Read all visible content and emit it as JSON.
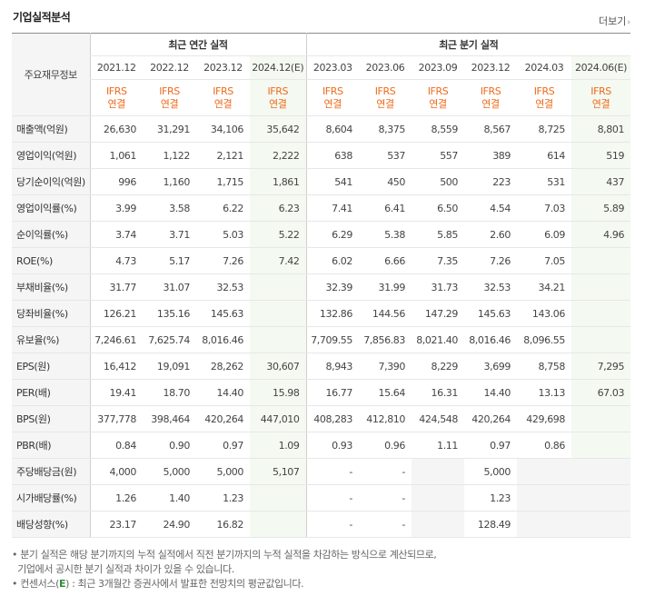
{
  "title": "기업실적분석",
  "more_label": "더보기",
  "header": {
    "corner": "주요재무정보",
    "annual_group": "최근 연간 실적",
    "quarter_group": "최근 분기 실적",
    "annual_periods": [
      "2021.12",
      "2022.12",
      "2023.12",
      "2024.12(E)"
    ],
    "quarter_periods": [
      "2023.03",
      "2023.06",
      "2023.09",
      "2023.12",
      "2024.03",
      "2024.06(E)"
    ],
    "ifrs_top": "IFRS",
    "ifrs_bottom": "연결"
  },
  "rows": [
    {
      "label": "매출액(억원)",
      "values": [
        "26,630",
        "31,291",
        "34,106",
        "35,642",
        "8,604",
        "8,375",
        "8,559",
        "8,567",
        "8,725",
        "8,801"
      ]
    },
    {
      "label": "영업이익(억원)",
      "values": [
        "1,061",
        "1,122",
        "2,121",
        "2,222",
        "638",
        "537",
        "557",
        "389",
        "614",
        "519"
      ]
    },
    {
      "label": "당기순이익(억원)",
      "values": [
        "996",
        "1,160",
        "1,715",
        "1,861",
        "541",
        "450",
        "500",
        "223",
        "531",
        "437"
      ]
    },
    {
      "label": "영업이익률(%)",
      "values": [
        "3.99",
        "3.58",
        "6.22",
        "6.23",
        "7.41",
        "6.41",
        "6.50",
        "4.54",
        "7.03",
        "5.89"
      ]
    },
    {
      "label": "순이익률(%)",
      "values": [
        "3.74",
        "3.71",
        "5.03",
        "5.22",
        "6.29",
        "5.38",
        "5.85",
        "2.60",
        "6.09",
        "4.96"
      ]
    },
    {
      "label": "ROE(%)",
      "values": [
        "4.73",
        "5.17",
        "7.26",
        "7.42",
        "6.02",
        "6.66",
        "7.35",
        "7.26",
        "7.05",
        ""
      ]
    },
    {
      "label": "부채비율(%)",
      "values": [
        "31.77",
        "31.07",
        "32.53",
        "",
        "32.39",
        "31.99",
        "31.73",
        "32.53",
        "34.21",
        ""
      ]
    },
    {
      "label": "당좌비율(%)",
      "values": [
        "126.21",
        "135.16",
        "145.63",
        "",
        "132.86",
        "144.56",
        "147.29",
        "145.63",
        "143.06",
        ""
      ]
    },
    {
      "label": "유보율(%)",
      "values": [
        "7,246.61",
        "7,625.74",
        "8,016.46",
        "",
        "7,709.55",
        "7,856.83",
        "8,021.40",
        "8,016.46",
        "8,096.55",
        ""
      ]
    },
    {
      "label": "EPS(원)",
      "values": [
        "16,412",
        "19,091",
        "28,262",
        "30,607",
        "8,943",
        "7,390",
        "8,229",
        "3,699",
        "8,758",
        "7,295"
      ]
    },
    {
      "label": "PER(배)",
      "values": [
        "19.41",
        "18.70",
        "14.40",
        "15.98",
        "16.77",
        "15.64",
        "16.31",
        "14.40",
        "13.13",
        "67.03"
      ]
    },
    {
      "label": "BPS(원)",
      "values": [
        "377,778",
        "398,464",
        "420,264",
        "447,010",
        "408,283",
        "412,810",
        "424,548",
        "420,264",
        "429,698",
        ""
      ]
    },
    {
      "label": "PBR(배)",
      "values": [
        "0.84",
        "0.90",
        "0.97",
        "1.09",
        "0.93",
        "0.96",
        "1.11",
        "0.97",
        "0.86",
        ""
      ]
    },
    {
      "label": "주당배당금(원)",
      "values": [
        "4,000",
        "5,000",
        "5,000",
        "5,107",
        "-",
        "-",
        "",
        "5,000",
        "",
        ""
      ]
    },
    {
      "label": "시가배당률(%)",
      "values": [
        "1.26",
        "1.40",
        "1.23",
        "",
        "-",
        "-",
        "",
        "1.23",
        "",
        ""
      ]
    },
    {
      "label": "배당성향(%)",
      "values": [
        "23.17",
        "24.90",
        "16.82",
        "",
        "-",
        "-",
        "",
        "128.49",
        "",
        ""
      ]
    }
  ],
  "notes": {
    "line1": "분기 실적은 해당 분기까지의 누적 실적에서 직전 분기까지의 누적 실적을 차감하는 방식으로 계산되므로,",
    "line2": "기업에서 공시한 분기 실적과 차이가 있을 수 있습니다.",
    "line3_prefix": "컨센서스(",
    "line3_mark": "E",
    "line3_suffix": ") : 최근 3개월간 증권사에서 발표한 전망치의 평균값입니다."
  },
  "colors": {
    "ifrs": "#ef6a1a",
    "estimate_shade": "#f4f9f1",
    "label_bg": "#f5f5f5"
  }
}
